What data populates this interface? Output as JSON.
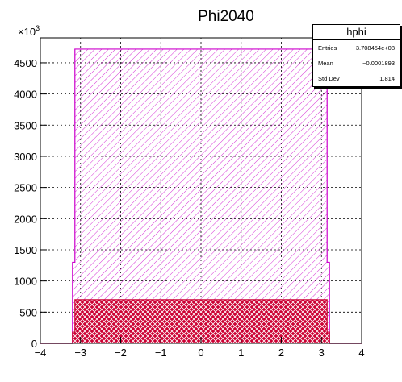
{
  "chart_data": {
    "type": "bar",
    "title": "Phi2040",
    "xlim": [
      -4,
      4
    ],
    "ylim": [
      0,
      4900
    ],
    "y_multiplier_label": "×10",
    "y_multiplier_exp": "3",
    "x_ticks": [
      "−4",
      "−2",
      "−1",
      "0",
      "1",
      "2",
      "3",
      "4"
    ],
    "x_tick_values": [
      -4,
      -2,
      -1,
      0,
      1,
      2,
      3,
      4
    ],
    "x_tick_extra": [
      {
        "value": -3,
        "label": "−3"
      }
    ],
    "y_ticks": [
      "0",
      "500",
      "1000",
      "1500",
      "2000",
      "2500",
      "3000",
      "3500",
      "4000",
      "4500"
    ],
    "y_tick_values": [
      0,
      500,
      1000,
      1500,
      2000,
      2500,
      3000,
      3500,
      4000,
      4500
    ],
    "grid": true,
    "series": [
      {
        "name": "hphi",
        "color": "#cc00cc",
        "fill": "hatch-diagonal",
        "x_start": -3.14,
        "x_end": 3.14,
        "edge_values": [
          {
            "x": -3.2,
            "y": 1300
          },
          {
            "x": 3.2,
            "y": 1300
          }
        ],
        "level": 4720
      },
      {
        "color": "#cc0033",
        "fill": "crosshatch",
        "x_start": -3.14,
        "x_end": 3.14,
        "edge_values": [
          {
            "x": -3.2,
            "y": 180
          },
          {
            "x": 3.2,
            "y": 180
          }
        ],
        "level": 700
      }
    ],
    "stats": {
      "name": "hphi",
      "entries_label": "Entries",
      "entries": "3.708454e+08",
      "mean_label": "Mean",
      "mean": "−0.0001893",
      "std_label": "Std Dev",
      "std": "1.814"
    }
  }
}
